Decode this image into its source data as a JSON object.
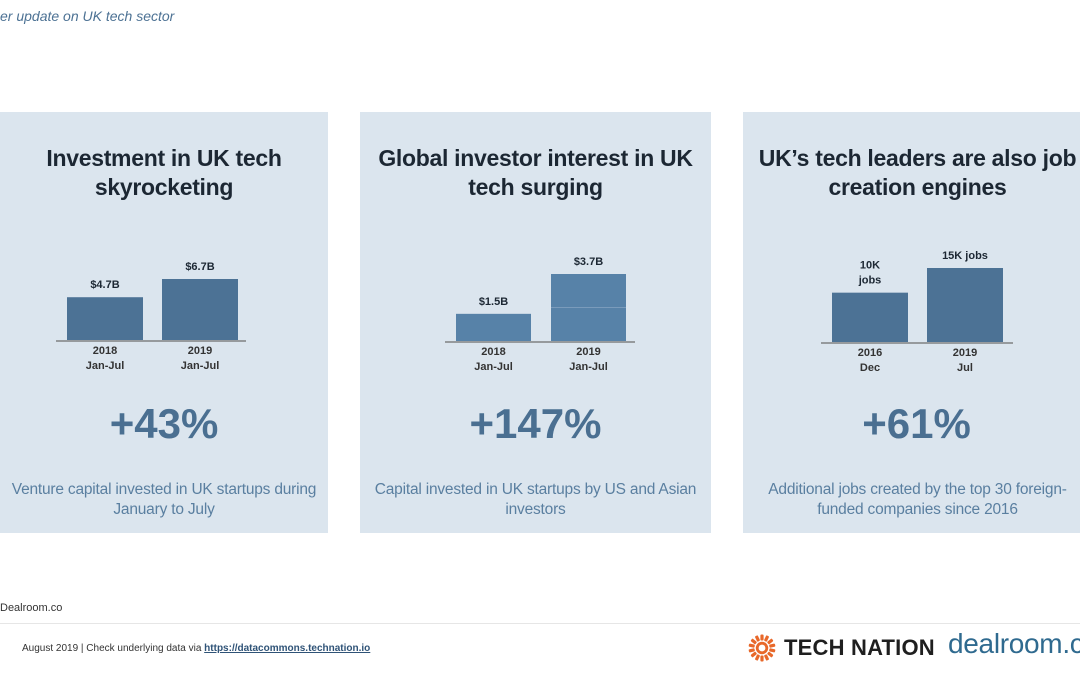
{
  "header": {
    "subtitle": "er update on UK tech sector"
  },
  "panels": [
    {
      "title_line1": "Investment in UK tech",
      "title_line2": "skyrocketing",
      "percent": "+43%",
      "desc_line1": "Venture capital invested in UK startups during",
      "desc_line2": "January to July"
    },
    {
      "title_line1": "Global investor interest in UK",
      "title_line2": "tech surging",
      "percent": "+147%",
      "desc_line1": "Capital invested in UK startups by US and Asian",
      "desc_line2": "investors"
    },
    {
      "title_line1": "UK’s tech leaders are also job",
      "title_line2": "creation engines",
      "percent": "+61%",
      "desc_line1": "Additional jobs created by the top 30 foreign-",
      "desc_line2": "funded companies since 2016"
    }
  ],
  "chart_data": [
    {
      "type": "bar",
      "categories": [
        [
          "2018",
          "Jan-Jul"
        ],
        [
          "2019",
          "Jan-Jul"
        ]
      ],
      "values": [
        4.7,
        6.7
      ],
      "labels": [
        [
          "$4.7B"
        ],
        [
          "$6.7B"
        ]
      ],
      "unit": "$B",
      "ylim": [
        0,
        6.7
      ],
      "bar_color": "#4c7295"
    },
    {
      "type": "bar",
      "categories": [
        [
          "2018",
          "Jan-Jul"
        ],
        [
          "2019",
          "Jan-Jul"
        ]
      ],
      "values": [
        1.5,
        3.7
      ],
      "labels": [
        [
          "$1.5B"
        ],
        [
          "$3.7B"
        ]
      ],
      "unit": "$B",
      "ylim": [
        0,
        3.7
      ],
      "bar_color": "#5782a8"
    },
    {
      "type": "bar",
      "categories": [
        [
          "2016",
          "Dec"
        ],
        [
          "2019",
          "Jul"
        ]
      ],
      "values": [
        10,
        15
      ],
      "labels": [
        [
          "10K",
          "jobs"
        ],
        [
          "15K jobs"
        ]
      ],
      "unit": "K jobs",
      "ylim": [
        0,
        15
      ],
      "bar_color": "#4c7295"
    }
  ],
  "source": {
    "text": "Dealroom.co"
  },
  "footer": {
    "note_prefix": "August 2019 | Check underlying data via ",
    "link_text": "https://datacommons.technation.io"
  },
  "logos": {
    "tech_nation": "TECH NATION",
    "dealroom": "dealroom.co",
    "tech_nation_color": "#e8682a",
    "dealroom_color": "#2f6a8f"
  },
  "colors": {
    "panel_bg": "#dbe5ee",
    "accent": "#4a6f91"
  }
}
